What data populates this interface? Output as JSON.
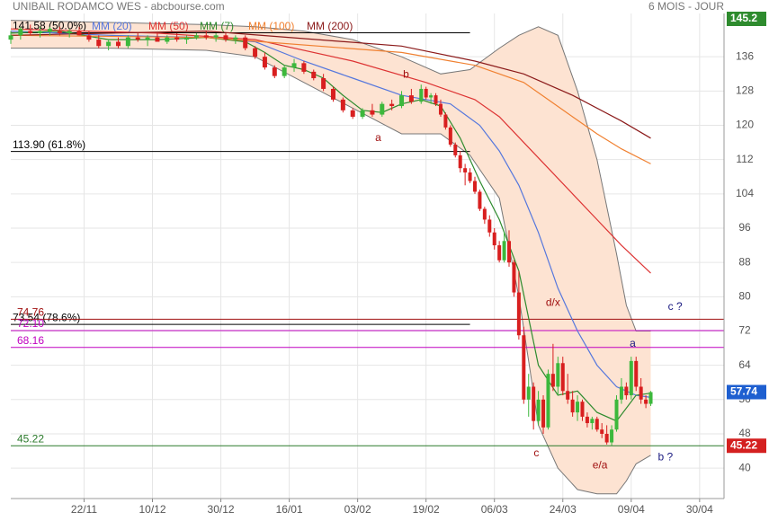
{
  "chart_data": {
    "type": "candlestick",
    "title": "UNIBAIL RODAMCO WES - abcbourse.com",
    "subtitle": "6 MOIS - JOUR",
    "xlim": [
      0,
      146
    ],
    "ylim": [
      32.9,
      146.1
    ],
    "grid": true,
    "xticks": [
      {
        "value": 15,
        "label": "22/11"
      },
      {
        "value": 29,
        "label": "10/12"
      },
      {
        "value": 43,
        "label": "30/12"
      },
      {
        "value": 57,
        "label": "16/01"
      },
      {
        "value": 71,
        "label": "03/02"
      },
      {
        "value": 85,
        "label": "19/02"
      },
      {
        "value": 99,
        "label": "06/03"
      },
      {
        "value": 113,
        "label": "24/03"
      },
      {
        "value": 127,
        "label": "09/04"
      },
      {
        "value": 141,
        "label": "30/04"
      }
    ],
    "yticks": [
      40,
      48,
      56,
      64,
      72,
      80,
      88,
      96,
      104,
      112,
      120,
      128,
      136
    ],
    "up_color": "#3cb83c",
    "down_color": "#d81f1f",
    "candles": [
      [
        0,
        140,
        142,
        139,
        141
      ],
      [
        2,
        141,
        143,
        140,
        142.5
      ],
      [
        4,
        142,
        143.5,
        141,
        141.5
      ],
      [
        6,
        141.5,
        143,
        140.5,
        142
      ],
      [
        8,
        142,
        143,
        141,
        142.5
      ],
      [
        10,
        142,
        143,
        141,
        141.5
      ],
      [
        12,
        141.5,
        142.5,
        140.5,
        142
      ],
      [
        14,
        142,
        143,
        141,
        141
      ],
      [
        16,
        141,
        142,
        139.5,
        140
      ],
      [
        18,
        140,
        141,
        138,
        138.5
      ],
      [
        20,
        138.5,
        140,
        137.5,
        139.5
      ],
      [
        22,
        139.5,
        140.5,
        138,
        138.5
      ],
      [
        24,
        138.5,
        141,
        138,
        140.5
      ],
      [
        26,
        140.5,
        141.5,
        139.5,
        140
      ],
      [
        28,
        140,
        141,
        138.5,
        140.5
      ],
      [
        30,
        140.5,
        141.5,
        139.5,
        139.5
      ],
      [
        32,
        139.5,
        141,
        139,
        140.5
      ],
      [
        34,
        140.5,
        141.5,
        139.5,
        140
      ],
      [
        36,
        140,
        141,
        139,
        140.5
      ],
      [
        38,
        140.5,
        141.5,
        140,
        141
      ],
      [
        40,
        141,
        142,
        140,
        140.5
      ],
      [
        42,
        140.5,
        141.5,
        139.5,
        141
      ],
      [
        44,
        141,
        141.5,
        139.5,
        140
      ],
      [
        46,
        140,
        141,
        139,
        140.5
      ],
      [
        48,
        140.5,
        141,
        137.5,
        138
      ],
      [
        50,
        138,
        138.5,
        135.5,
        136
      ],
      [
        52,
        136,
        137,
        133,
        133.5
      ],
      [
        54,
        133.5,
        134,
        131,
        131.5
      ],
      [
        56,
        131.5,
        134,
        131,
        133.5
      ],
      [
        58,
        133.5,
        135.5,
        132.5,
        134.5
      ],
      [
        60,
        134.5,
        135,
        132,
        132.5
      ],
      [
        62,
        132.5,
        133,
        130.5,
        131
      ],
      [
        64,
        131,
        132,
        128,
        128.5
      ],
      [
        66,
        128.5,
        129,
        125.5,
        126
      ],
      [
        68,
        126,
        126.5,
        123,
        123.5
      ],
      [
        70,
        123.5,
        124,
        121.5,
        122
      ],
      [
        72,
        122,
        124,
        121.5,
        123.5
      ],
      [
        74,
        123.5,
        125,
        122,
        122.5
      ],
      [
        76,
        122.5,
        125.5,
        122,
        125
      ],
      [
        78,
        125,
        126,
        123.5,
        124.5
      ],
      [
        80,
        124.5,
        128,
        124,
        127
      ],
      [
        82,
        127,
        128.5,
        125,
        125.5
      ],
      [
        84,
        125.5,
        129.5,
        125,
        128.5
      ],
      [
        85,
        128.5,
        129,
        126,
        126.5
      ],
      [
        86,
        126.5,
        127.5,
        125,
        127
      ],
      [
        87,
        127,
        127.5,
        124.5,
        125
      ],
      [
        88,
        125,
        126,
        122,
        122.5
      ],
      [
        89,
        122.5,
        123,
        119,
        119.5
      ],
      [
        90,
        119.5,
        120,
        115,
        115.5
      ],
      [
        91,
        115.5,
        116,
        112.5,
        113
      ],
      [
        92,
        113,
        114,
        109,
        110
      ],
      [
        93,
        110,
        111,
        106,
        109
      ],
      [
        94,
        109,
        110,
        106.5,
        107
      ],
      [
        95,
        107,
        108,
        104,
        104.5
      ],
      [
        96,
        104.5,
        105,
        100,
        100.5
      ],
      [
        97,
        100.5,
        101,
        97,
        98
      ],
      [
        98,
        98,
        99,
        94,
        95
      ],
      [
        99,
        95,
        96,
        91,
        92
      ],
      [
        100,
        92,
        93,
        88,
        88.5
      ],
      [
        101,
        88.5,
        95,
        88,
        93
      ],
      [
        102,
        93,
        95.5,
        87,
        88
      ],
      [
        103,
        88,
        88.5,
        80,
        81
      ],
      [
        104,
        81,
        86,
        70,
        71
      ],
      [
        105,
        71,
        73,
        55,
        56
      ],
      [
        106,
        56,
        62,
        52,
        59
      ],
      [
        107,
        59,
        60,
        49,
        51
      ],
      [
        108,
        51,
        58,
        50,
        56
      ],
      [
        109,
        56,
        57,
        48,
        49.5
      ],
      [
        110,
        49.5,
        63,
        49,
        62
      ],
      [
        111,
        62,
        69,
        58,
        59
      ],
      [
        112,
        59,
        66,
        57,
        64.5
      ],
      [
        113,
        64.5,
        66,
        57,
        58
      ],
      [
        114,
        58,
        62,
        55,
        56
      ],
      [
        115,
        56,
        58,
        52,
        53
      ],
      [
        116,
        53,
        57,
        51,
        55.5
      ],
      [
        117,
        55.5,
        56,
        51,
        52
      ],
      [
        118,
        52,
        53,
        49.5,
        50.5
      ],
      [
        119,
        50.5,
        52,
        49,
        51.5
      ],
      [
        120,
        51.5,
        52,
        48.5,
        49
      ],
      [
        121,
        49,
        50.5,
        47,
        48
      ],
      [
        122,
        48,
        50,
        45.5,
        46
      ],
      [
        123,
        46,
        50,
        45.22,
        49
      ],
      [
        124,
        49,
        57,
        48.5,
        56
      ],
      [
        125,
        56,
        61,
        55,
        59
      ],
      [
        126,
        59,
        60,
        56,
        57
      ],
      [
        127,
        57,
        66,
        56,
        65
      ],
      [
        128,
        65,
        66,
        58,
        59
      ],
      [
        129,
        59,
        61,
        55,
        56
      ],
      [
        130,
        56,
        57,
        54,
        55
      ],
      [
        131,
        55,
        58,
        54.5,
        57.74
      ]
    ],
    "band": {
      "color": "#fde3d2",
      "edge": "#777777",
      "x": [
        0,
        20,
        40,
        50,
        60,
        70,
        80,
        88,
        94,
        100,
        104,
        108,
        112,
        116,
        120,
        124,
        126,
        128,
        131
      ],
      "upper": [
        144.5,
        144,
        143.5,
        143,
        142,
        140,
        136,
        132,
        133,
        138,
        141,
        143,
        141,
        128,
        112,
        90,
        78,
        72,
        72
      ],
      "lower": [
        138,
        138,
        137.5,
        136,
        130,
        124,
        118,
        118,
        113,
        103,
        80,
        50,
        40,
        35,
        34,
        34,
        37,
        41,
        43
      ]
    },
    "series": [
      {
        "name": "MM (20)",
        "color": "#5577dd",
        "x": [
          0,
          20,
          40,
          50,
          60,
          70,
          80,
          90,
          96,
          100,
          104,
          108,
          112,
          116,
          120,
          124,
          128,
          131
        ],
        "values": [
          142,
          141,
          140.5,
          139.5,
          135,
          131,
          127,
          125,
          120,
          114,
          106,
          95,
          82,
          72,
          64,
          59,
          57,
          56.5
        ]
      },
      {
        "name": "MM (50)",
        "color": "#dd3333",
        "x": [
          0,
          30,
          50,
          70,
          85,
          95,
          100,
          105,
          110,
          115,
          120,
          125,
          131
        ],
        "values": [
          142.5,
          141.5,
          140,
          135,
          130,
          126,
          122,
          116,
          110,
          104,
          98,
          92,
          85.5
        ]
      },
      {
        "name": "MM (7)",
        "color": "#2e8b2e",
        "x": [
          0,
          10,
          20,
          30,
          40,
          48,
          52,
          56,
          60,
          64,
          68,
          72,
          76,
          80,
          84,
          88,
          92,
          96,
          100,
          104,
          108,
          112,
          116,
          120,
          124,
          128,
          131
        ],
        "values": [
          141.5,
          142,
          140,
          140,
          140.5,
          139.5,
          137,
          134,
          133,
          131,
          127,
          123.5,
          123,
          125,
          126,
          124.5,
          117,
          107,
          98,
          86,
          64,
          57,
          58,
          53,
          51,
          57,
          57.5
        ]
      },
      {
        "name": "MM (100)",
        "color": "#f08030",
        "x": [
          0,
          40,
          80,
          95,
          105,
          110,
          115,
          120,
          125,
          131
        ],
        "values": [
          141,
          140.5,
          137,
          134,
          130,
          126,
          122,
          118,
          114.5,
          111
        ]
      },
      {
        "name": "MM (200)",
        "color": "#8b1a1a",
        "x": [
          0,
          40,
          80,
          95,
          105,
          115,
          125,
          131
        ],
        "values": [
          141,
          142,
          138.5,
          135,
          132,
          127,
          121,
          117
        ]
      }
    ],
    "levels": [
      {
        "value": 141.58,
        "label": "141.58 (50.0%)",
        "color": "#000000",
        "x_end": 94
      },
      {
        "value": 113.9,
        "label": "113.90  (61.8%)",
        "color": "#000000",
        "x_end": 94
      },
      {
        "value": 73.54,
        "label": "73.54 (78.6%)",
        "color": "#000000",
        "x_end": 94
      },
      {
        "value": 74.76,
        "label": "74.76",
        "color": "#a01010"
      },
      {
        "value": 72.1,
        "label": "72.10",
        "color": "#c000c0"
      },
      {
        "value": 68.16,
        "label": "68.16",
        "color": "#c000c0"
      },
      {
        "value": 45.22,
        "label": "45.22",
        "color": "#2a7a2a"
      }
    ],
    "annotations": [
      {
        "text": "a",
        "x": 75.2,
        "y": 117,
        "color": "#a01010"
      },
      {
        "text": "b",
        "x": 80.9,
        "y": 131.8,
        "color": "#a01010"
      },
      {
        "text": "d/x",
        "x": 111,
        "y": 78.5,
        "color": "#a01010"
      },
      {
        "text": "c ?",
        "x": 136,
        "y": 77.6,
        "color": "#1a1a80"
      },
      {
        "text": "a",
        "x": 127.3,
        "y": 69,
        "color": "#1a1a80"
      },
      {
        "text": "c",
        "x": 107.6,
        "y": 43.4,
        "color": "#a01010"
      },
      {
        "text": "e/a",
        "x": 120.6,
        "y": 40.6,
        "color": "#a01010"
      },
      {
        "text": "b ?",
        "x": 134,
        "y": 42.5,
        "color": "#1a1a80"
      }
    ],
    "price_tags": [
      {
        "value": 145.2,
        "color": "#2e8b2e"
      },
      {
        "value": 57.74,
        "color": "#1e5fd0"
      },
      {
        "value": 45.22,
        "color": "#d42020"
      }
    ]
  }
}
